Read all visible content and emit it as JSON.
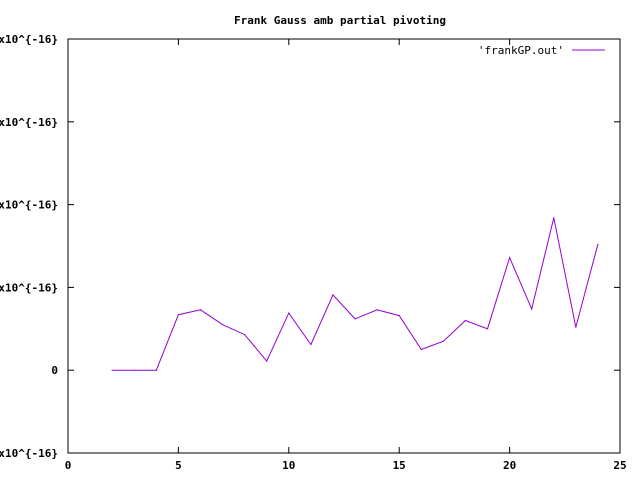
{
  "chart_data": {
    "type": "line",
    "title": "Frank Gauss amb partial pivoting",
    "xlabel": "",
    "ylabel": "",
    "xlim": [
      0,
      25
    ],
    "ylim": [
      -1,
      4
    ],
    "x_ticks": [
      0,
      5,
      10,
      15,
      20,
      25
    ],
    "x_tick_labels": [
      "0",
      "5",
      "10",
      "15",
      "20",
      "25"
    ],
    "y_ticks": [
      -1,
      0,
      1,
      2,
      3,
      4
    ],
    "y_tick_labels": [
      "x10^{-16}",
      "0",
      "x10^{-16}",
      "x10^{-16}",
      "x10^{-16}",
      "x10^{-16}"
    ],
    "y_unit_note": "y ticks are in units of 1e-16 (tick labels clipped at left edge)",
    "grid": false,
    "legend_position": "top-right",
    "series": [
      {
        "name": "'frankGP.out'",
        "color": "#9400d3",
        "x": [
          2,
          3,
          4,
          5,
          6,
          7,
          8,
          9,
          10,
          11,
          12,
          13,
          14,
          15,
          16,
          17,
          18,
          19,
          20,
          21,
          22,
          23,
          24
        ],
        "y": [
          0,
          0,
          0,
          0.67,
          0.73,
          0.55,
          0.43,
          0.11,
          0.69,
          0.31,
          0.91,
          0.62,
          0.73,
          0.66,
          0.25,
          0.35,
          0.6,
          0.5,
          1.36,
          0.74,
          1.84,
          0.52,
          1.52
        ]
      }
    ]
  }
}
